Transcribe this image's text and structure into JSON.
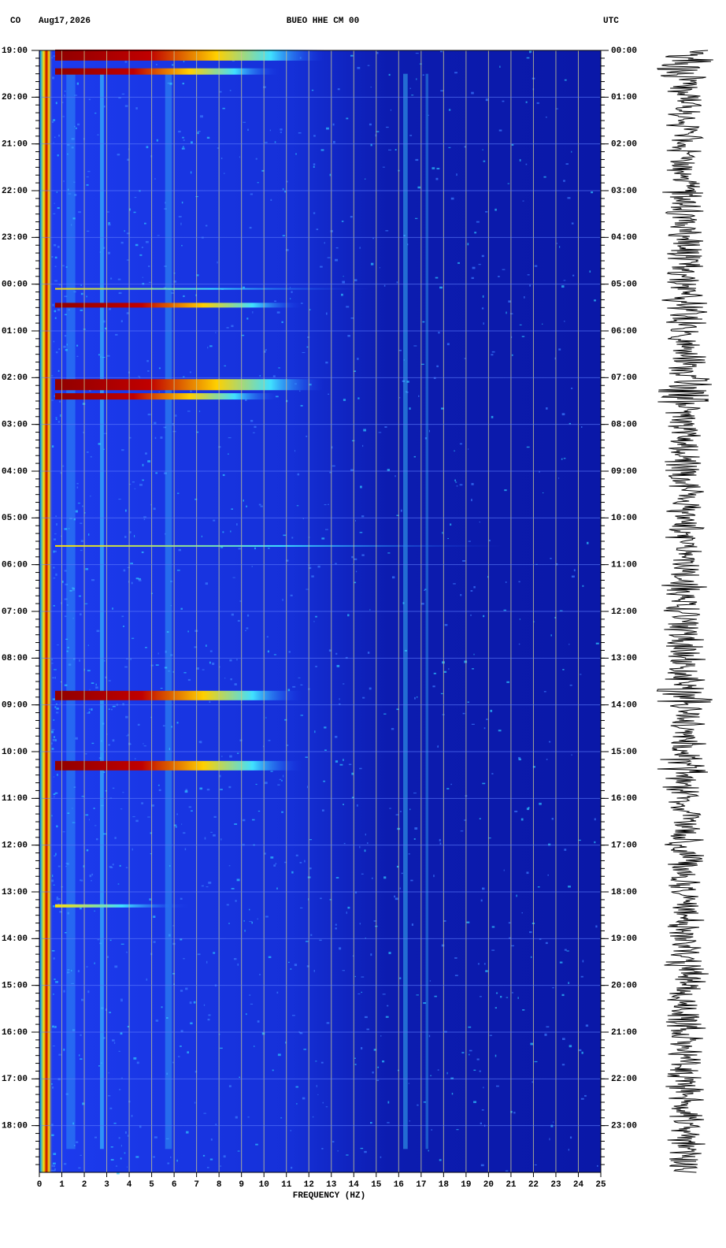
{
  "chart_data": {
    "type": "spectrogram",
    "network": "CO",
    "date": "Aug17,2026",
    "title": "BUEO HHE CM 00",
    "timezone": "UTC",
    "xlabel": "FREQUENCY (HZ)",
    "xlim": [
      0,
      25
    ],
    "xticks": [
      0,
      1,
      2,
      3,
      4,
      5,
      6,
      7,
      8,
      9,
      10,
      11,
      12,
      13,
      14,
      15,
      16,
      17,
      18,
      19,
      20,
      21,
      22,
      23,
      24,
      25
    ],
    "ylim": [
      0,
      24
    ],
    "yticks": [
      {
        "value": 0,
        "label": "19:00"
      },
      {
        "value": 1,
        "label": "20:00"
      },
      {
        "value": 2,
        "label": "21:00"
      },
      {
        "value": 3,
        "label": "22:00"
      },
      {
        "value": 4,
        "label": "23:00"
      },
      {
        "value": 5,
        "label": "00:00"
      },
      {
        "value": 6,
        "label": "01:00"
      },
      {
        "value": 7,
        "label": "02:00"
      },
      {
        "value": 8,
        "label": "03:00"
      },
      {
        "value": 9,
        "label": "04:00"
      },
      {
        "value": 10,
        "label": "05:00"
      },
      {
        "value": 11,
        "label": "06:00"
      },
      {
        "value": 12,
        "label": "07:00"
      },
      {
        "value": 13,
        "label": "08:00"
      },
      {
        "value": 14,
        "label": "09:00"
      },
      {
        "value": 15,
        "label": "10:00"
      },
      {
        "value": 16,
        "label": "11:00"
      },
      {
        "value": 17,
        "label": "12:00"
      },
      {
        "value": 18,
        "label": "13:00"
      },
      {
        "value": 19,
        "label": "14:00"
      },
      {
        "value": 20,
        "label": "15:00"
      },
      {
        "value": 21,
        "label": "16:00"
      },
      {
        "value": 22,
        "label": "17:00"
      },
      {
        "value": 23,
        "label": "18:00"
      }
    ],
    "y2lim": [
      0,
      24
    ],
    "y2ticks": [
      {
        "value": 0,
        "label": "00:00"
      },
      {
        "value": 1,
        "label": "01:00"
      },
      {
        "value": 2,
        "label": "02:00"
      },
      {
        "value": 3,
        "label": "03:00"
      },
      {
        "value": 4,
        "label": "04:00"
      },
      {
        "value": 5,
        "label": "05:00"
      },
      {
        "value": 6,
        "label": "06:00"
      },
      {
        "value": 7,
        "label": "07:00"
      },
      {
        "value": 8,
        "label": "08:00"
      },
      {
        "value": 9,
        "label": "09:00"
      },
      {
        "value": 10,
        "label": "10:00"
      },
      {
        "value": 11,
        "label": "11:00"
      },
      {
        "value": 12,
        "label": "12:00"
      },
      {
        "value": 13,
        "label": "13:00"
      },
      {
        "value": 14,
        "label": "14:00"
      },
      {
        "value": 15,
        "label": "15:00"
      },
      {
        "value": 16,
        "label": "16:00"
      },
      {
        "value": 17,
        "label": "17:00"
      },
      {
        "value": 18,
        "label": "18:00"
      },
      {
        "value": 19,
        "label": "19:00"
      },
      {
        "value": 20,
        "label": "20:00"
      },
      {
        "value": 21,
        "label": "21:00"
      },
      {
        "value": 22,
        "label": "22:00"
      },
      {
        "value": 23,
        "label": "23:00"
      }
    ],
    "grid": true
  }
}
